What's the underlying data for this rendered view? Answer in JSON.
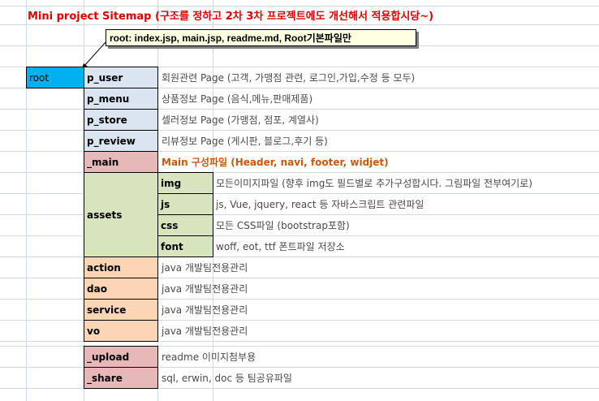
{
  "title": "Mini project Sitemap (구조를 정하고 2차 3차 프로젝트에도 개선해서 적용합시당~)",
  "comment": "root:   index.jsp, main.jsp, readme.md, Root기본파일만",
  "colors": {
    "title": "#e00000",
    "root": "#00b0f0",
    "blue": "#dbe5f1",
    "pink": "#e6b9b8",
    "green": "#d7e4bd",
    "orange": "#fcd5b4",
    "main_desc": "#c65911"
  },
  "root_label": "root",
  "rows": {
    "p_user": {
      "label": "p_user",
      "desc": "회원관련 Page (고객, 가맹점 관련, 로그인,가입,수정 등 모두)"
    },
    "p_menu": {
      "label": "p_menu",
      "desc": "상품정보 Page (음식,메뉴,판매제품)"
    },
    "p_store": {
      "label": "p_store",
      "desc": "셀러정보 Page (가맹점, 점포, 계열사)"
    },
    "p_review": {
      "label": "p_review",
      "desc": "리뷰정보 Page (게시판, 블로그,후기 등)"
    },
    "main": {
      "label": "_main",
      "desc": "Main 구성파일 (Header, navi, footer, widjet)"
    }
  },
  "assets": {
    "label": "assets",
    "children": [
      {
        "label": "img",
        "desc": "모든이미지파일 (향후 img도 필드별로 추가구성합시다. 그림파일 전부여기로)"
      },
      {
        "label": "js",
        "desc": "js, Vue, jquery, react 등 자바스크립트 관련파일"
      },
      {
        "label": "css",
        "desc": "모든 CSS파일 (bootstrap포함)"
      },
      {
        "label": "font",
        "desc": "woff, eot, ttf 폰트파일 저장소"
      }
    ]
  },
  "java": [
    {
      "label": "action",
      "desc": "java 개발팀전용관리"
    },
    {
      "label": "dao",
      "desc": "java 개발팀전용관리"
    },
    {
      "label": "service",
      "desc": "java 개발팀전용관리"
    },
    {
      "label": "vo",
      "desc": "java 개발팀전용관리"
    }
  ],
  "misc": [
    {
      "label": "_upload",
      "desc": "readme 이미지첨부용"
    },
    {
      "label": "_share",
      "desc": "sql, erwin, doc 등 팀공유파일"
    }
  ]
}
